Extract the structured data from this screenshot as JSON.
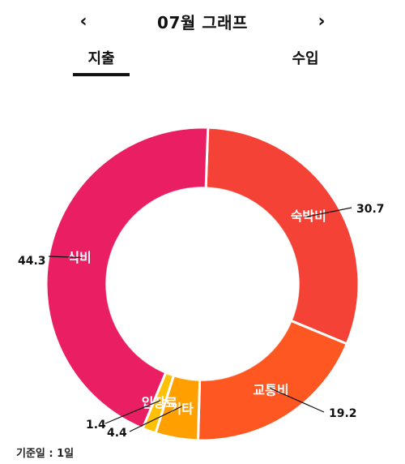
{
  "header": {
    "title": "07월 그래프",
    "prev_icon": "‹",
    "next_icon": "›"
  },
  "tabs": [
    {
      "label": "지출",
      "active": true
    },
    {
      "label": "수입",
      "active": false
    }
  ],
  "chart_data": {
    "type": "pie",
    "donut": true,
    "slices": [
      {
        "label": "숙박비",
        "value": 30.7,
        "color": "#f44336"
      },
      {
        "label": "교통비",
        "value": 19.2,
        "color": "#ff5722"
      },
      {
        "label": "기타",
        "value": 4.4,
        "color": "#ffa000"
      },
      {
        "label": "입장료",
        "value": 1.4,
        "color": "#ffc107"
      },
      {
        "label": "식비",
        "value": 44.3,
        "color": "#e91e63"
      }
    ]
  },
  "footnote": "기준일 : 1일"
}
